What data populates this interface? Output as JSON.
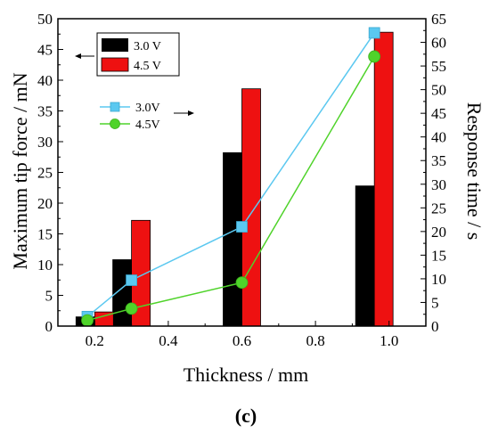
{
  "chart_data": {
    "type": "bar",
    "xlabel": "Thickness / mm",
    "ylabel_left": "Maximum tip force / mN",
    "ylabel_right": "Response time / s",
    "panel_label": "(c)",
    "x_range": [
      0.1,
      1.1
    ],
    "x_ticks": [
      "0.2",
      "0.4",
      "0.6",
      "0.8",
      "1.0"
    ],
    "y_left_range": [
      0,
      50
    ],
    "y_left_ticks": [
      "0",
      "5",
      "10",
      "15",
      "20",
      "25",
      "30",
      "35",
      "40",
      "45",
      "50"
    ],
    "y_right_range": [
      0,
      65
    ],
    "y_right_ticks": [
      "0",
      "5",
      "10",
      "15",
      "20",
      "25",
      "30",
      "35",
      "40",
      "45",
      "50",
      "55",
      "60",
      "65"
    ],
    "bar_series": [
      {
        "name": "3.0 V",
        "color": "#000000",
        "x": [
          0.2,
          0.3,
          0.6,
          0.96
        ],
        "values": [
          1.5,
          10.8,
          28.2,
          22.8
        ]
      },
      {
        "name": "4.5 V",
        "color": "#ee1111",
        "x": [
          0.2,
          0.3,
          0.6,
          0.96
        ],
        "values": [
          2.3,
          17.2,
          38.6,
          47.8
        ]
      }
    ],
    "line_series": [
      {
        "name": "3.0V",
        "color": "#5bc8f0",
        "marker": "square",
        "x": [
          0.18,
          0.3,
          0.6,
          0.96
        ],
        "values": [
          2.0,
          9.7,
          21.0,
          62.0
        ]
      },
      {
        "name": "4.5V",
        "color": "#4fd32a",
        "marker": "circle",
        "x": [
          0.18,
          0.3,
          0.6,
          0.96
        ],
        "values": [
          1.2,
          3.7,
          9.2,
          57.0
        ]
      }
    ],
    "legend_bars_position": "top-left",
    "legend_lines_position": "upper-middle",
    "grid": false
  }
}
